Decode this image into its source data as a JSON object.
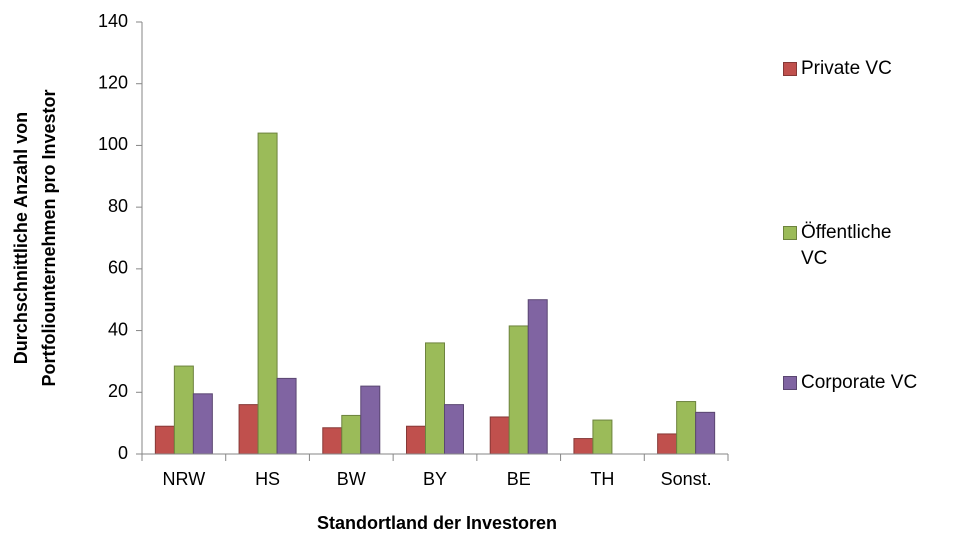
{
  "chart_data": {
    "type": "bar",
    "xlabel": "Standortland der Investoren",
    "ylabel": [
      "Durchschnittliche Anzahl von",
      "Portfoliounternehmen pro Investor"
    ],
    "categories": [
      "NRW",
      "HS",
      "BW",
      "BY",
      "BE",
      "TH",
      "Sonst."
    ],
    "series": [
      {
        "name": "Private VC",
        "color": "#c0504d",
        "values": [
          9,
          16,
          8.5,
          9,
          12,
          5,
          6.5
        ]
      },
      {
        "name": "Öffentliche VC",
        "color": "#9bbb59",
        "values": [
          28.5,
          104,
          12.5,
          36,
          41.5,
          11,
          17
        ]
      },
      {
        "name": "Corporate VC",
        "color": "#8064a2",
        "values": [
          19.5,
          24.5,
          22,
          16,
          50,
          null,
          13.5
        ]
      }
    ],
    "ylim": [
      0,
      140
    ],
    "yticks": [
      0,
      20,
      40,
      60,
      80,
      100,
      120,
      140
    ],
    "grid": false,
    "legend": "right"
  }
}
